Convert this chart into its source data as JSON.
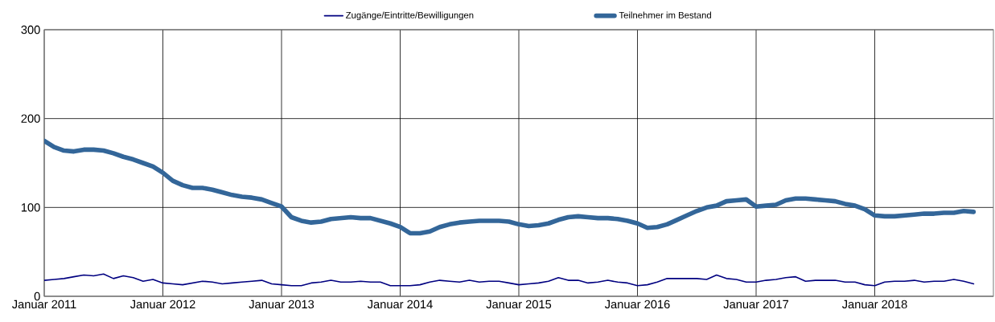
{
  "chart_data": {
    "type": "line",
    "x": [
      "2011-01",
      "2011-02",
      "2011-03",
      "2011-04",
      "2011-05",
      "2011-06",
      "2011-07",
      "2011-08",
      "2011-09",
      "2011-10",
      "2011-11",
      "2011-12",
      "2012-01",
      "2012-02",
      "2012-03",
      "2012-04",
      "2012-05",
      "2012-06",
      "2012-07",
      "2012-08",
      "2012-09",
      "2012-10",
      "2012-11",
      "2012-12",
      "2013-01",
      "2013-02",
      "2013-03",
      "2013-04",
      "2013-05",
      "2013-06",
      "2013-07",
      "2013-08",
      "2013-09",
      "2013-10",
      "2013-11",
      "2013-12",
      "2014-01",
      "2014-02",
      "2014-03",
      "2014-04",
      "2014-05",
      "2014-06",
      "2014-07",
      "2014-08",
      "2014-09",
      "2014-10",
      "2014-11",
      "2014-12",
      "2015-01",
      "2015-02",
      "2015-03",
      "2015-04",
      "2015-05",
      "2015-06",
      "2015-07",
      "2015-08",
      "2015-09",
      "2015-10",
      "2015-11",
      "2015-12",
      "2016-01",
      "2016-02",
      "2016-03",
      "2016-04",
      "2016-05",
      "2016-06",
      "2016-07",
      "2016-08",
      "2016-09",
      "2016-10",
      "2016-11",
      "2016-12",
      "2017-01",
      "2017-02",
      "2017-03",
      "2017-04",
      "2017-05",
      "2017-06",
      "2017-07",
      "2017-08",
      "2017-09",
      "2017-10",
      "2017-11",
      "2017-12",
      "2018-01",
      "2018-02",
      "2018-03",
      "2018-04",
      "2018-05",
      "2018-06",
      "2018-07",
      "2018-08",
      "2018-09",
      "2018-10",
      "2018-11"
    ],
    "series": [
      {
        "name": "Zugänge/Eintritte/Bewilligungen",
        "color": "#000080",
        "values": [
          18,
          19,
          20,
          22,
          24,
          23,
          25,
          20,
          23,
          21,
          17,
          19,
          15,
          14,
          13,
          15,
          17,
          16,
          14,
          15,
          16,
          17,
          18,
          14,
          13,
          12,
          12,
          15,
          16,
          18,
          16,
          16,
          17,
          16,
          16,
          12,
          12,
          12,
          13,
          16,
          18,
          17,
          16,
          18,
          16,
          17,
          17,
          15,
          13,
          14,
          15,
          17,
          21,
          18,
          18,
          15,
          16,
          18,
          16,
          15,
          12,
          13,
          16,
          20,
          20,
          20,
          20,
          19,
          24,
          20,
          19,
          16,
          16,
          18,
          19,
          21,
          22,
          17,
          18,
          18,
          18,
          16,
          16,
          13,
          12,
          16,
          17,
          17,
          18,
          16,
          17,
          17,
          19,
          17,
          14
        ]
      },
      {
        "name": "Teilnehmer im Bestand",
        "color": "#336699",
        "values": [
          175,
          168,
          164,
          163,
          165,
          165,
          164,
          161,
          157,
          154,
          150,
          146,
          139,
          130,
          125,
          122,
          122,
          120,
          117,
          114,
          112,
          111,
          109,
          105,
          101,
          89,
          85,
          83,
          84,
          87,
          88,
          89,
          88,
          88,
          85,
          82,
          78,
          71,
          71,
          73,
          78,
          81,
          83,
          84,
          85,
          85,
          85,
          84,
          81,
          79,
          80,
          82,
          86,
          89,
          90,
          89,
          88,
          88,
          87,
          85,
          82,
          77,
          78,
          81,
          86,
          91,
          96,
          100,
          102,
          107,
          108,
          109,
          101,
          102,
          103,
          108,
          110,
          110,
          109,
          108,
          107,
          104,
          102,
          98,
          91,
          90,
          90,
          91,
          92,
          93,
          93,
          94,
          94,
          96,
          95
        ]
      }
    ],
    "xlim": [
      "2011-01",
      "2019-01"
    ],
    "xticks": [
      {
        "value": "2011-01",
        "label": "Januar 2011"
      },
      {
        "value": "2012-01",
        "label": "Januar 2012"
      },
      {
        "value": "2013-01",
        "label": "Januar 2013"
      },
      {
        "value": "2014-01",
        "label": "Januar 2014"
      },
      {
        "value": "2015-01",
        "label": "Januar 2015"
      },
      {
        "value": "2016-01",
        "label": "Januar 2016"
      },
      {
        "value": "2017-01",
        "label": "Januar 2017"
      },
      {
        "value": "2018-01",
        "label": "Januar 2018"
      }
    ],
    "ylim": [
      0,
      300
    ],
    "yticks": [
      0,
      100,
      200,
      300
    ],
    "grid": true,
    "legend": "top",
    "marker": "none",
    "line_style": "solid"
  }
}
